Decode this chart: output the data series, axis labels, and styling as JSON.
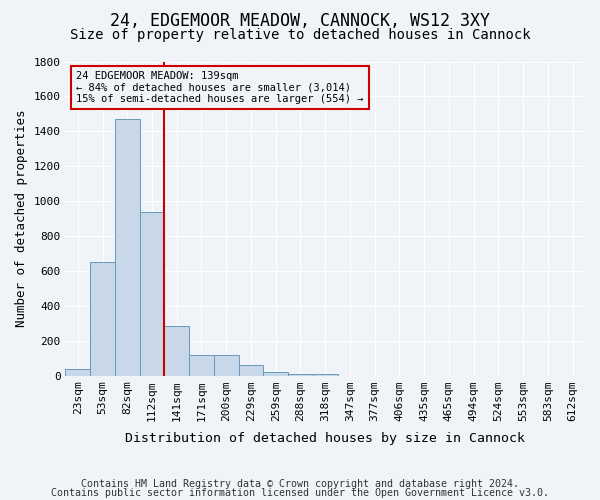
{
  "title": "24, EDGEMOOR MEADOW, CANNOCK, WS12 3XY",
  "subtitle": "Size of property relative to detached houses in Cannock",
  "xlabel": "Distribution of detached houses by size in Cannock",
  "ylabel": "Number of detached properties",
  "footnote1": "Contains HM Land Registry data © Crown copyright and database right 2024.",
  "footnote2": "Contains public sector information licensed under the Open Government Licence v3.0.",
  "bin_labels": [
    "23sqm",
    "53sqm",
    "82sqm",
    "112sqm",
    "141sqm",
    "171sqm",
    "200sqm",
    "229sqm",
    "259sqm",
    "288sqm",
    "318sqm",
    "347sqm",
    "377sqm",
    "406sqm",
    "435sqm",
    "465sqm",
    "494sqm",
    "524sqm",
    "553sqm",
    "583sqm",
    "612sqm"
  ],
  "bar_values": [
    35,
    650,
    1470,
    940,
    285,
    120,
    120,
    60,
    20,
    10,
    10,
    0,
    0,
    0,
    0,
    0,
    0,
    0,
    0,
    0,
    0
  ],
  "bar_color": "#c8d8e8",
  "bar_edge_color": "#6699bb",
  "vline_x": 4,
  "vline_color": "#cc0000",
  "ylim": [
    0,
    1800
  ],
  "yticks": [
    0,
    200,
    400,
    600,
    800,
    1000,
    1200,
    1400,
    1600,
    1800
  ],
  "annotation_title": "24 EDGEMOOR MEADOW: 139sqm",
  "annotation_line1": "← 84% of detached houses are smaller (3,014)",
  "annotation_line2": "15% of semi-detached houses are larger (554) →",
  "annotation_box_color": "#cc0000",
  "background_color": "#f0f4f8",
  "grid_color": "#ffffff",
  "title_fontsize": 12,
  "subtitle_fontsize": 10,
  "label_fontsize": 9,
  "tick_fontsize": 8,
  "footnote_fontsize": 7.2
}
